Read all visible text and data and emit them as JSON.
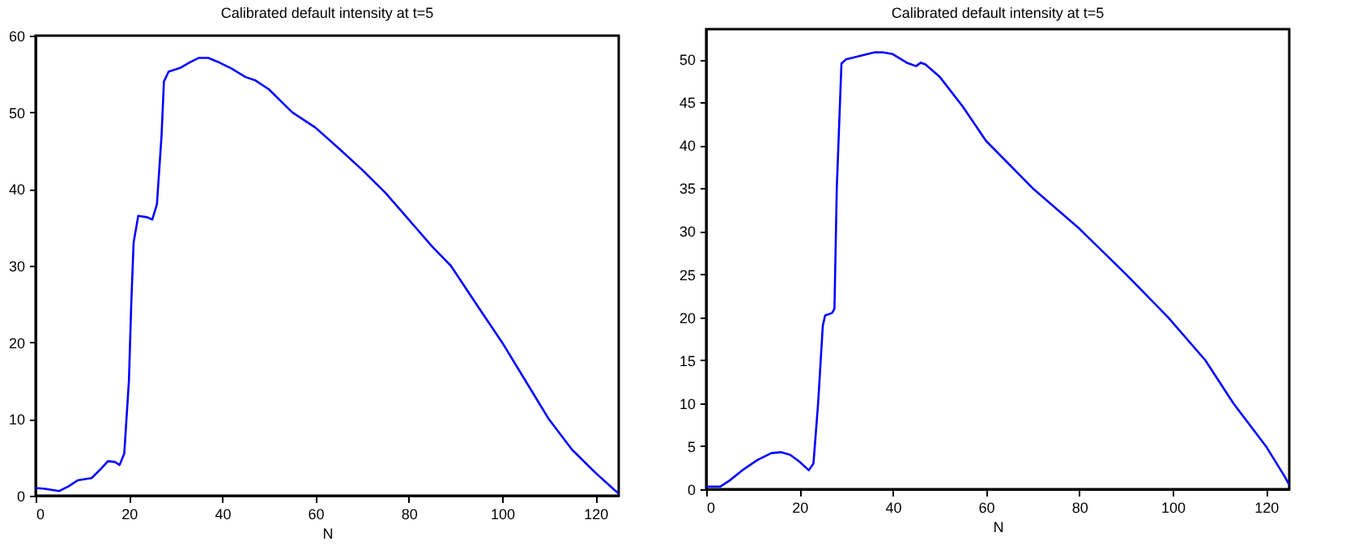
{
  "chart_data": [
    {
      "type": "line",
      "title": "Calibrated default intensity at t=5",
      "xlabel": "N",
      "xlim": [
        0,
        125
      ],
      "xticks": [
        0,
        20,
        40,
        60,
        80,
        100,
        120
      ],
      "ylim": [
        0,
        60
      ],
      "yticks": [
        0,
        10,
        20,
        30,
        40,
        50,
        60
      ],
      "grid": false,
      "series": [
        {
          "color": "#0000ff",
          "x": [
            0,
            2,
            5,
            7,
            9,
            12,
            14,
            15.5,
            17,
            18,
            19,
            20,
            20.5,
            21,
            22,
            24,
            25,
            26,
            27,
            27.5,
            28.5,
            31,
            33,
            35,
            37,
            39,
            42,
            45,
            47,
            50,
            55,
            60,
            65,
            70,
            75,
            80,
            85,
            89,
            95,
            100,
            105,
            110,
            115,
            120,
            124,
            125
          ],
          "values": [
            1,
            0.9,
            0.6,
            1.2,
            2,
            2.3,
            3.5,
            4.5,
            4.4,
            4,
            5.5,
            15,
            25,
            33,
            36.5,
            36.3,
            36,
            38,
            47,
            54,
            55.3,
            55.8,
            56.5,
            57.1,
            57.1,
            56.6,
            55.7,
            54.6,
            54.2,
            53,
            50,
            48,
            45.3,
            42.5,
            39.5,
            36,
            32.5,
            30,
            24.5,
            20,
            15,
            10,
            6,
            3,
            0.8,
            0.3
          ]
        }
      ]
    },
    {
      "type": "line",
      "title": "Calibrated default intensity at t=5",
      "xlabel": "N",
      "xlim": [
        0,
        125
      ],
      "xticks": [
        0,
        20,
        40,
        60,
        80,
        100,
        120
      ],
      "ylim": [
        0,
        53.5
      ],
      "yticks": [
        0,
        5,
        10,
        15,
        20,
        25,
        30,
        35,
        40,
        45,
        50
      ],
      "grid": false,
      "series": [
        {
          "color": "#0000ff",
          "x": [
            0,
            3,
            5,
            8,
            11,
            14,
            16,
            18,
            20,
            22,
            23,
            24,
            25,
            25.5,
            27,
            27.5,
            28,
            29,
            30,
            33,
            36,
            38,
            40,
            43,
            45,
            46,
            47,
            50,
            55,
            60,
            70,
            80,
            90,
            99,
            107,
            113,
            120,
            124,
            125
          ],
          "values": [
            0.3,
            0.3,
            1,
            2.3,
            3.4,
            4.2,
            4.3,
            4,
            3.2,
            2.2,
            3,
            10,
            19,
            20.2,
            20.5,
            21,
            35,
            49.5,
            50,
            50.4,
            50.8,
            50.8,
            50.6,
            49.6,
            49.2,
            49.6,
            49.4,
            48,
            44.5,
            40.5,
            35,
            30.3,
            25,
            20,
            15,
            10,
            5,
            1.5,
            0.5
          ]
        }
      ]
    }
  ]
}
